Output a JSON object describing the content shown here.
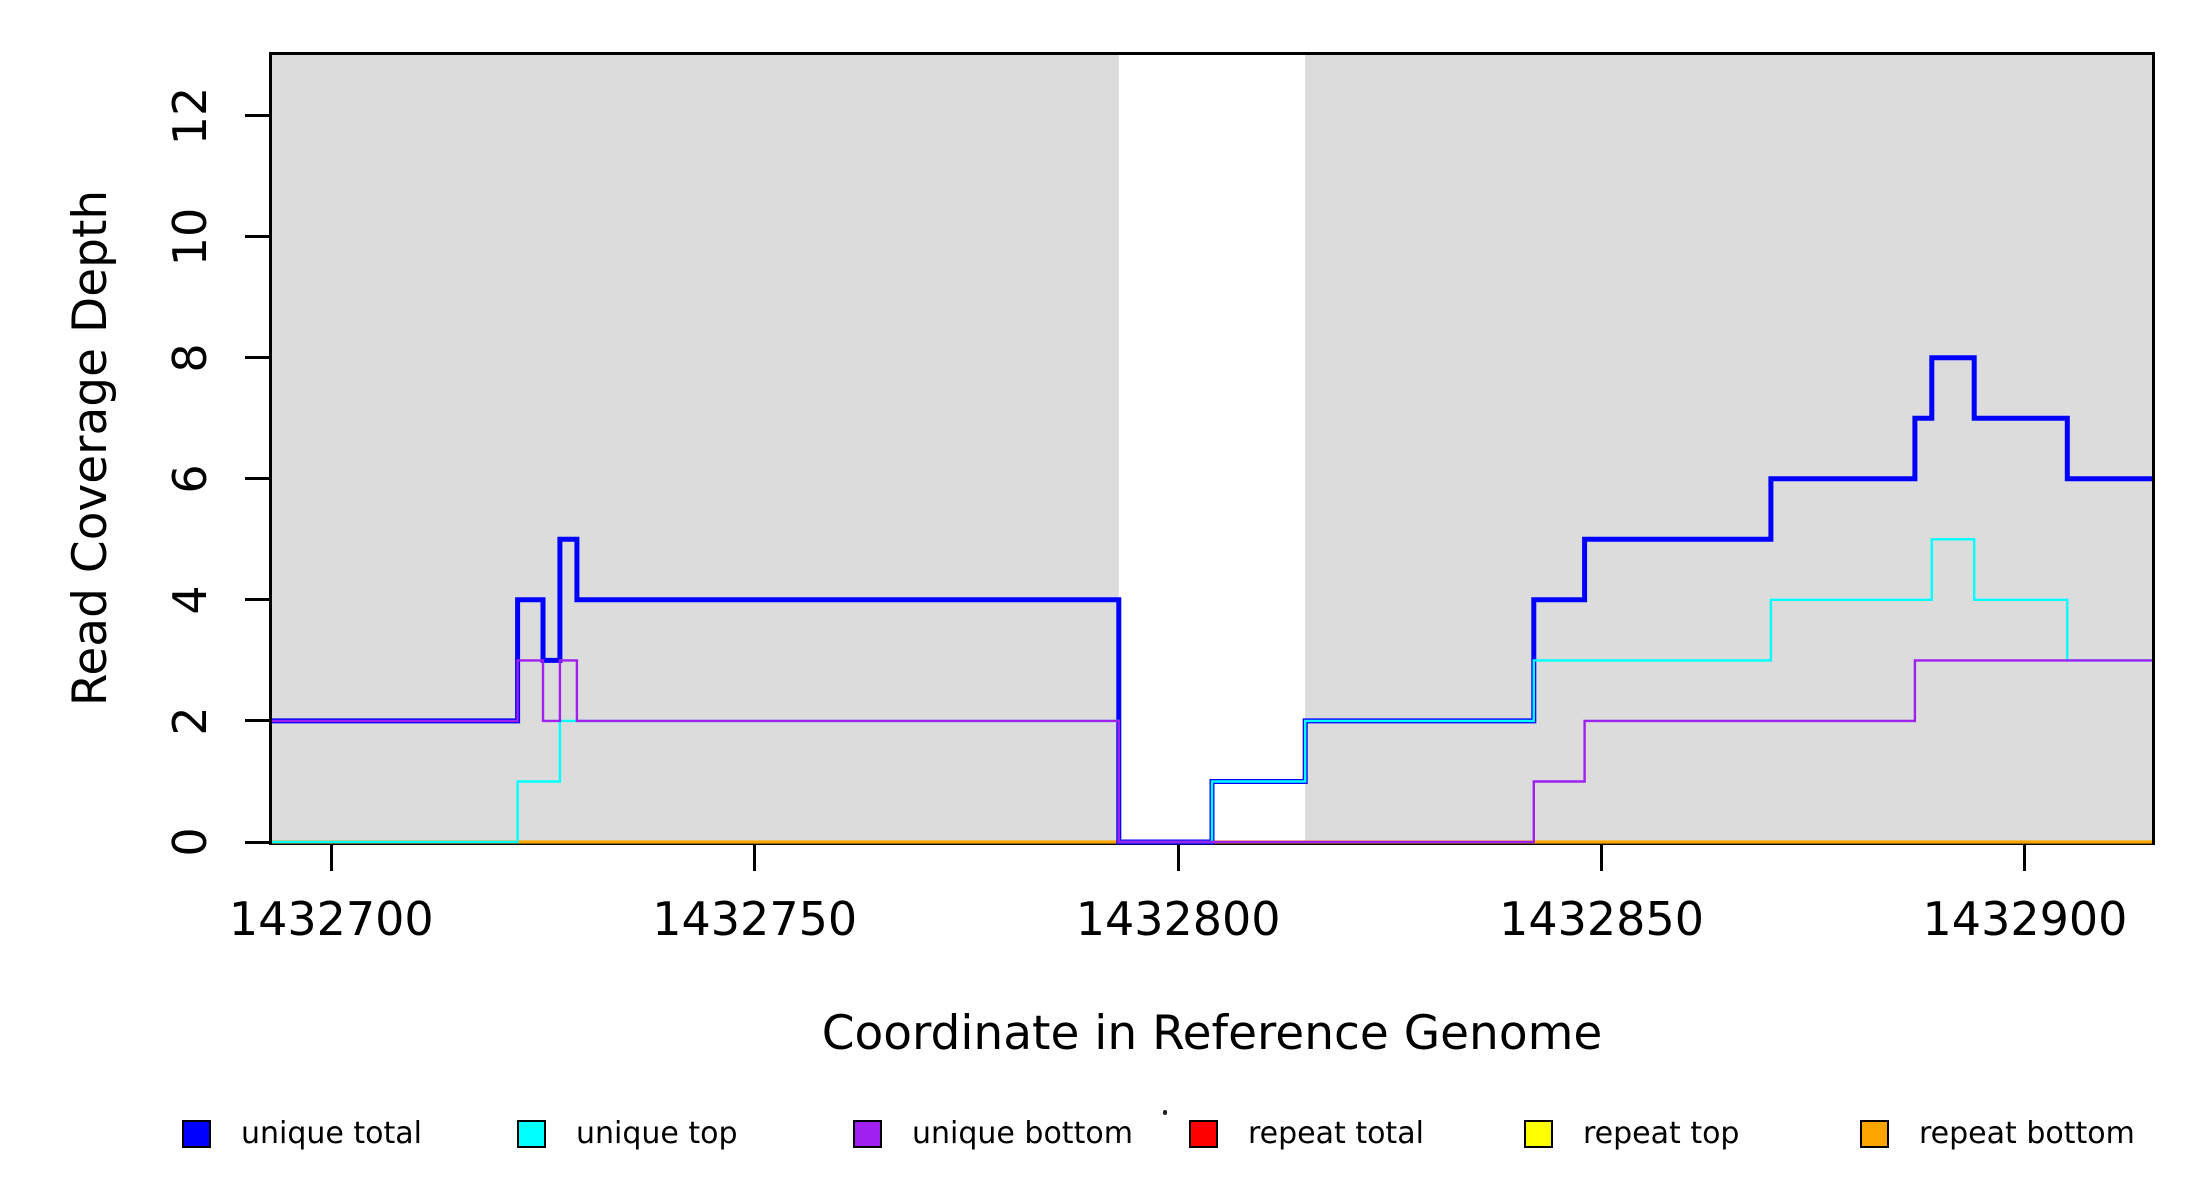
{
  "chart_data": {
    "type": "line",
    "subtype": "step",
    "title": "",
    "xlabel": "Coordinate in Reference Genome",
    "ylabel": "Read Coverage Depth",
    "xlim": [
      1432693,
      1432915
    ],
    "ylim": [
      0,
      13
    ],
    "x_ticks": [
      1432700,
      1432750,
      1432800,
      1432850,
      1432900
    ],
    "y_ticks": [
      0,
      2,
      4,
      6,
      8,
      10,
      12
    ],
    "grid": false,
    "legend_position": "bottom",
    "background_color": "#FFFFFF",
    "shaded_region_color": "#DCDCDC",
    "shaded_regions": [
      {
        "x0": 1432693,
        "x1": 1432793
      },
      {
        "x0": 1432815,
        "x1": 1432915
      }
    ],
    "draw_order": [
      3,
      4,
      5,
      0,
      1,
      2
    ],
    "series": [
      {
        "name": "unique total",
        "color": "#0000FF",
        "line_width": 5,
        "points": [
          [
            1432693,
            2
          ],
          [
            1432722,
            4
          ],
          [
            1432725,
            3
          ],
          [
            1432727,
            5
          ],
          [
            1432729,
            4
          ],
          [
            1432793,
            0
          ],
          [
            1432804,
            1
          ],
          [
            1432815,
            2
          ],
          [
            1432842,
            4
          ],
          [
            1432848,
            5
          ],
          [
            1432870,
            6
          ],
          [
            1432887,
            7
          ],
          [
            1432889,
            8
          ],
          [
            1432894,
            7
          ],
          [
            1432905,
            6
          ],
          [
            1432915,
            6
          ]
        ]
      },
      {
        "name": "unique top",
        "color": "#00FFFF",
        "line_width": 2.4,
        "points": [
          [
            1432693,
            0
          ],
          [
            1432722,
            1
          ],
          [
            1432727,
            2
          ],
          [
            1432793,
            0
          ],
          [
            1432804,
            1
          ],
          [
            1432815,
            2
          ],
          [
            1432842,
            3
          ],
          [
            1432870,
            4
          ],
          [
            1432889,
            5
          ],
          [
            1432894,
            4
          ],
          [
            1432905,
            3
          ],
          [
            1432915,
            3
          ]
        ]
      },
      {
        "name": "unique bottom",
        "color": "#A020F0",
        "line_width": 2.4,
        "points": [
          [
            1432693,
            2
          ],
          [
            1432722,
            3
          ],
          [
            1432725,
            2
          ],
          [
            1432727,
            3
          ],
          [
            1432729,
            2
          ],
          [
            1432793,
            0
          ],
          [
            1432842,
            1
          ],
          [
            1432848,
            2
          ],
          [
            1432887,
            3
          ],
          [
            1432915,
            3
          ]
        ]
      },
      {
        "name": "repeat total",
        "color": "#FF0000",
        "line_width": 2.4,
        "points": [
          [
            1432693,
            0
          ],
          [
            1432915,
            0
          ]
        ]
      },
      {
        "name": "repeat top",
        "color": "#FFFF00",
        "line_width": 2.4,
        "points": [
          [
            1432693,
            0
          ],
          [
            1432915,
            0
          ]
        ]
      },
      {
        "name": "repeat bottom",
        "color": "#FFA500",
        "line_width": 3.2,
        "points": [
          [
            1432693,
            0
          ],
          [
            1432915,
            0
          ]
        ]
      }
    ]
  }
}
